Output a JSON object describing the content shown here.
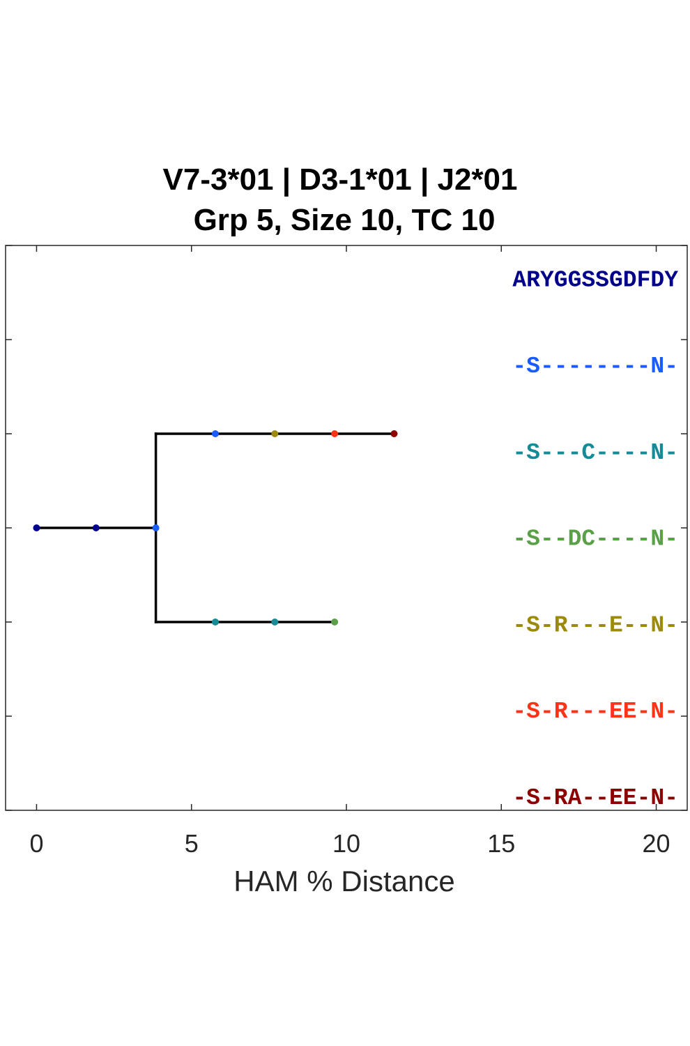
{
  "chart_data": {
    "type": "scatter",
    "title_lines": [
      "V7-3*01 | D3-1*01 | J2*01",
      "Grp 5, Size 10, TC 10"
    ],
    "xlabel": "HAM % Distance",
    "xlim": [
      -1,
      21
    ],
    "ylim": [
      0,
      6
    ],
    "x_ticks": [
      0,
      5,
      10,
      15,
      20
    ],
    "grid": false,
    "edges": [
      {
        "x1": 0,
        "y1": 3,
        "x2": 3.85,
        "y2": 3
      },
      {
        "x1": 3.85,
        "y1": 2,
        "x2": 3.85,
        "y2": 4
      },
      {
        "x1": 3.85,
        "y1": 4,
        "x2": 11.54,
        "y2": 4
      },
      {
        "x1": 3.85,
        "y1": 2,
        "x2": 9.62,
        "y2": 2
      }
    ],
    "nodes": [
      {
        "x": 0,
        "y": 3,
        "color": "#00008b"
      },
      {
        "x": 1.92,
        "y": 3,
        "color": "#00008b"
      },
      {
        "x": 3.85,
        "y": 3,
        "color": "#1a5cff"
      },
      {
        "x": 5.77,
        "y": 4,
        "color": "#1a5cff"
      },
      {
        "x": 7.69,
        "y": 4,
        "color": "#9c8a0e"
      },
      {
        "x": 9.62,
        "y": 4,
        "color": "#ff3318"
      },
      {
        "x": 11.54,
        "y": 4,
        "color": "#8b0000"
      },
      {
        "x": 5.77,
        "y": 2,
        "color": "#168a96"
      },
      {
        "x": 7.69,
        "y": 2,
        "color": "#168a96"
      },
      {
        "x": 9.62,
        "y": 2,
        "color": "#5ba049"
      }
    ],
    "sequences": [
      {
        "text": "ARYGGSSGDFDY",
        "color": "#00008b"
      },
      {
        "text": "-S--------N-",
        "color": "#1a5cff"
      },
      {
        "text": "-S---C----N-",
        "color": "#168a96"
      },
      {
        "text": "-S--DC----N-",
        "color": "#5ba049"
      },
      {
        "text": "-S-R---E--N-",
        "color": "#9c8a0e"
      },
      {
        "text": "-S-R---EE-N-",
        "color": "#ff3318"
      },
      {
        "text": "-S-RA--EE-N-",
        "color": "#8b0000"
      }
    ]
  }
}
